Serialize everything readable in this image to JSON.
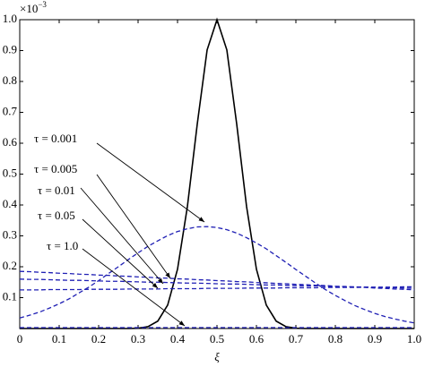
{
  "chart_data": {
    "type": "line",
    "xlabel": "ξ",
    "y_scale_label": {
      "base": "×10",
      "exponent": "−3"
    },
    "x": [
      0,
      0.025,
      0.05,
      0.075,
      0.1,
      0.125,
      0.15,
      0.175,
      0.2,
      0.225,
      0.25,
      0.275,
      0.3,
      0.325,
      0.35,
      0.375,
      0.4,
      0.425,
      0.45,
      0.475,
      0.5,
      0.525,
      0.55,
      0.575,
      0.6,
      0.625,
      0.65,
      0.675,
      0.7,
      0.725,
      0.75,
      0.775,
      0.8,
      0.825,
      0.85,
      0.875,
      0.9,
      0.925,
      0.95,
      0.975,
      1
    ],
    "series": [
      {
        "color": "#000000",
        "dash": false,
        "values": [
          0,
          0,
          0,
          0,
          0,
          0,
          0,
          0,
          0,
          0,
          0,
          0,
          0.001,
          0.006,
          0.024,
          0.076,
          0.192,
          0.395,
          0.662,
          0.902,
          1,
          0.902,
          0.662,
          0.395,
          0.192,
          0.076,
          0.024,
          0.006,
          0.001,
          0,
          0,
          0,
          0,
          0,
          0,
          0,
          0,
          0,
          0,
          0,
          0
        ]
      },
      {
        "name": "τ = 0.001",
        "color": "#1f1fb4",
        "dash": true,
        "values": [
          0.034,
          0.043,
          0.053,
          0.066,
          0.08,
          0.096,
          0.115,
          0.134,
          0.155,
          0.178,
          0.2,
          0.223,
          0.245,
          0.266,
          0.284,
          0.301,
          0.314,
          0.323,
          0.329,
          0.33,
          0.327,
          0.32,
          0.309,
          0.294,
          0.277,
          0.258,
          0.236,
          0.214,
          0.191,
          0.169,
          0.147,
          0.126,
          0.107,
          0.09,
          0.074,
          0.061,
          0.049,
          0.039,
          0.031,
          0.024,
          0.018
        ]
      },
      {
        "name": "τ = 0.005",
        "color": "#1f1fb4",
        "dash": true,
        "values": [
          0.185,
          0.184,
          0.182,
          0.181,
          0.179,
          0.178,
          0.176,
          0.175,
          0.173,
          0.172,
          0.17,
          0.169,
          0.167,
          0.166,
          0.164,
          0.163,
          0.161,
          0.16,
          0.158,
          0.157,
          0.155,
          0.154,
          0.152,
          0.151,
          0.149,
          0.148,
          0.146,
          0.145,
          0.143,
          0.142,
          0.14,
          0.139,
          0.137,
          0.136,
          0.134,
          0.133,
          0.131,
          0.13,
          0.128,
          0.127,
          0.125
        ]
      },
      {
        "name": "τ = 0.01",
        "color": "#1f1fb4",
        "dash": true,
        "values": [
          0.16,
          0.159,
          0.159,
          0.158,
          0.157,
          0.156,
          0.156,
          0.155,
          0.154,
          0.153,
          0.153,
          0.152,
          0.151,
          0.15,
          0.15,
          0.149,
          0.148,
          0.147,
          0.147,
          0.146,
          0.145,
          0.144,
          0.144,
          0.143,
          0.142,
          0.141,
          0.141,
          0.14,
          0.139,
          0.138,
          0.138,
          0.137,
          0.136,
          0.135,
          0.135,
          0.134,
          0.133,
          0.132,
          0.132,
          0.131,
          0.13
        ]
      },
      {
        "name": "τ = 0.05",
        "color": "#1f1fb4",
        "dash": true,
        "values": [
          0.125,
          0.125,
          0.125,
          0.126,
          0.126,
          0.126,
          0.126,
          0.127,
          0.127,
          0.127,
          0.127,
          0.128,
          0.128,
          0.128,
          0.128,
          0.129,
          0.129,
          0.129,
          0.129,
          0.13,
          0.13,
          0.13,
          0.13,
          0.131,
          0.131,
          0.131,
          0.131,
          0.132,
          0.132,
          0.132,
          0.132,
          0.133,
          0.133,
          0.133,
          0.133,
          0.134,
          0.134,
          0.134,
          0.134,
          0.135,
          0.135
        ]
      },
      {
        "name": "τ = 1.0",
        "color": "#1f1fb4",
        "dash": true,
        "values": [
          0.003,
          0.003,
          0.003,
          0.003,
          0.003,
          0.003,
          0.003,
          0.003,
          0.003,
          0.003,
          0.003,
          0.003,
          0.003,
          0.003,
          0.003,
          0.003,
          0.003,
          0.003,
          0.003,
          0.003,
          0.003,
          0.003,
          0.003,
          0.003,
          0.003,
          0.003,
          0.003,
          0.003,
          0.003,
          0.003,
          0.003,
          0.003,
          0.003,
          0.003,
          0.003,
          0.003,
          0.003,
          0.003,
          0.003,
          0.003,
          0.003
        ]
      }
    ],
    "xlim": [
      0,
      1
    ],
    "ylim": [
      0,
      1
    ],
    "xticks": [
      0,
      0.1,
      0.2,
      0.3,
      0.4,
      0.5,
      0.6,
      0.7,
      0.8,
      0.9,
      {
        "value": 1,
        "label": "1.0"
      }
    ],
    "yticks": [
      0.1,
      0.2,
      0.3,
      0.4,
      0.5,
      0.6,
      0.7,
      0.8,
      0.9,
      {
        "value": 1,
        "label": "1.0"
      }
    ],
    "grid": false
  }
}
